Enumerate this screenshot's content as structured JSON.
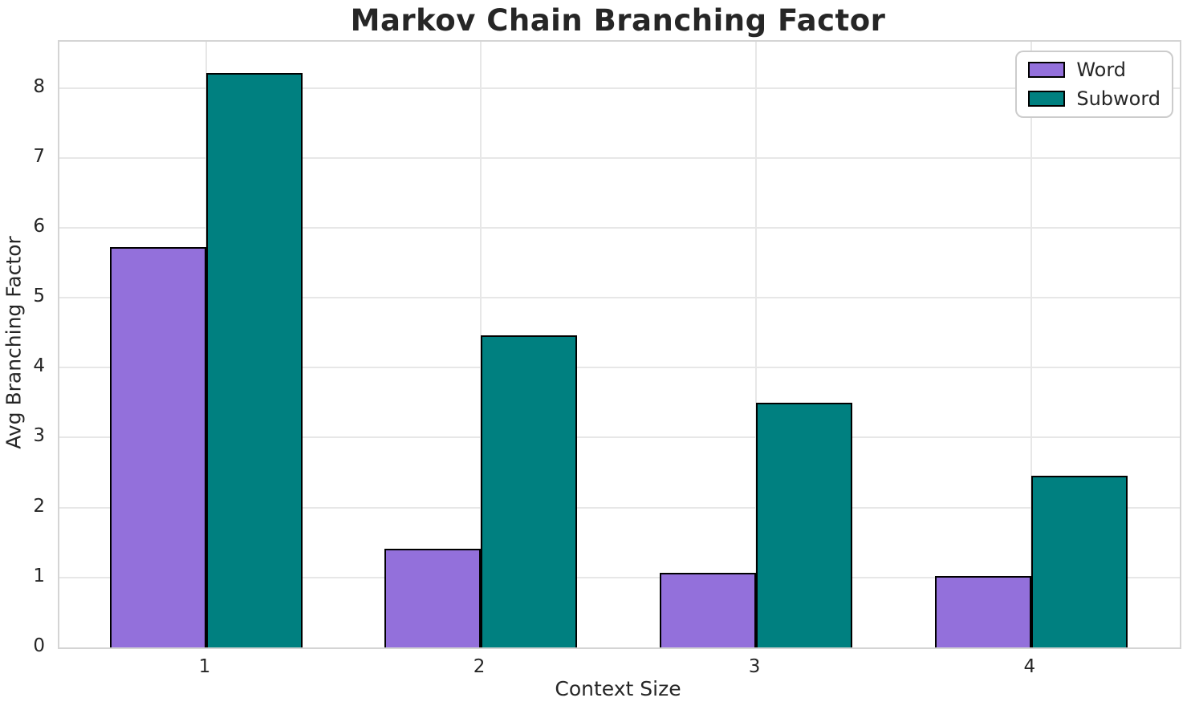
{
  "chart_data": {
    "type": "bar",
    "title": "Markov Chain Branching Factor",
    "xlabel": "Context Size",
    "ylabel": "Avg Branching Factor",
    "categories": [
      "1",
      "2",
      "3",
      "4"
    ],
    "series": [
      {
        "name": "Word",
        "color": "#9370DB",
        "values": [
          5.72,
          1.41,
          1.07,
          1.02
        ]
      },
      {
        "name": "Subword",
        "color": "#008080",
        "values": [
          8.21,
          4.46,
          3.5,
          2.45
        ]
      }
    ],
    "ylim": [
      0,
      8.66
    ],
    "yticks": [
      0,
      1,
      2,
      3,
      4,
      5,
      6,
      7,
      8
    ],
    "xticks": [
      "1",
      "2",
      "3",
      "4"
    ],
    "bar_edge_color": "#000000",
    "grid": true,
    "legend": {
      "position": "upper right",
      "entries": [
        "Word",
        "Subword"
      ]
    },
    "colors": {
      "grid": "#e7e7e7",
      "spine": "#d4d4d4",
      "text": "#262626",
      "background": "#ffffff"
    }
  }
}
